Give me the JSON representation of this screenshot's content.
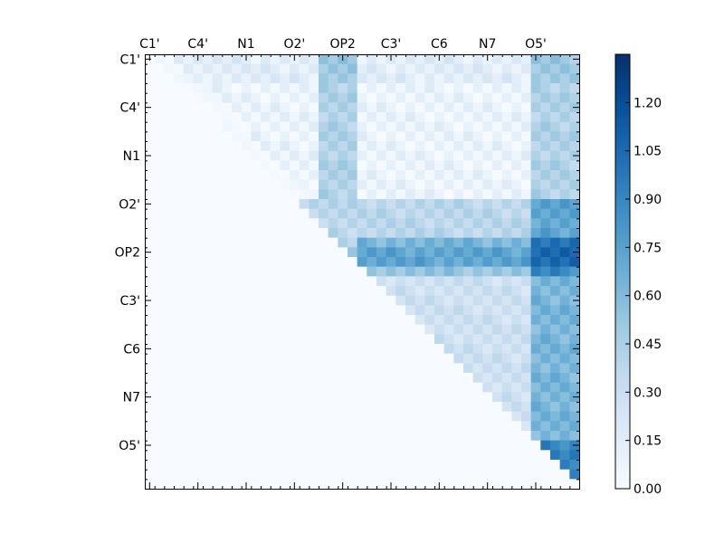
{
  "chart_data": {
    "type": "heatmap",
    "title": "",
    "xlabel": "",
    "ylabel": "",
    "n": 45,
    "x_tick_labels": [
      "C1'",
      "C4'",
      "N1",
      "O2'",
      "OP2",
      "C3'",
      "C6",
      "N7",
      "O5'"
    ],
    "y_tick_labels": [
      "C1'",
      "C4'",
      "N1",
      "O2'",
      "OP2",
      "C3'",
      "C6",
      "N7",
      "O5'"
    ],
    "tick_indices": [
      0,
      5,
      10,
      15,
      20,
      25,
      30,
      35,
      40
    ],
    "colormap": "Blues",
    "colorbar": {
      "range": [
        0.0,
        1.35
      ],
      "ticks": [
        "0.00",
        "0.15",
        "0.30",
        "0.45",
        "0.60",
        "0.75",
        "0.90",
        "1.05",
        "1.20"
      ],
      "tick_values": [
        0.0,
        0.15,
        0.3,
        0.45,
        0.6,
        0.75,
        0.9,
        1.05,
        1.2
      ]
    },
    "row_ranges": [
      [
        0,
        2,
        0.15
      ],
      [
        3,
        14,
        0.08
      ],
      [
        15,
        19,
        0.38
      ],
      [
        20,
        21,
        0.48
      ],
      [
        22,
        39,
        0.28
      ],
      [
        40,
        44,
        0.55
      ]
    ],
    "block_notes": "upper-triangular heatmap; strong values (up to 1.35) in OP2 rows and right-most columns"
  }
}
